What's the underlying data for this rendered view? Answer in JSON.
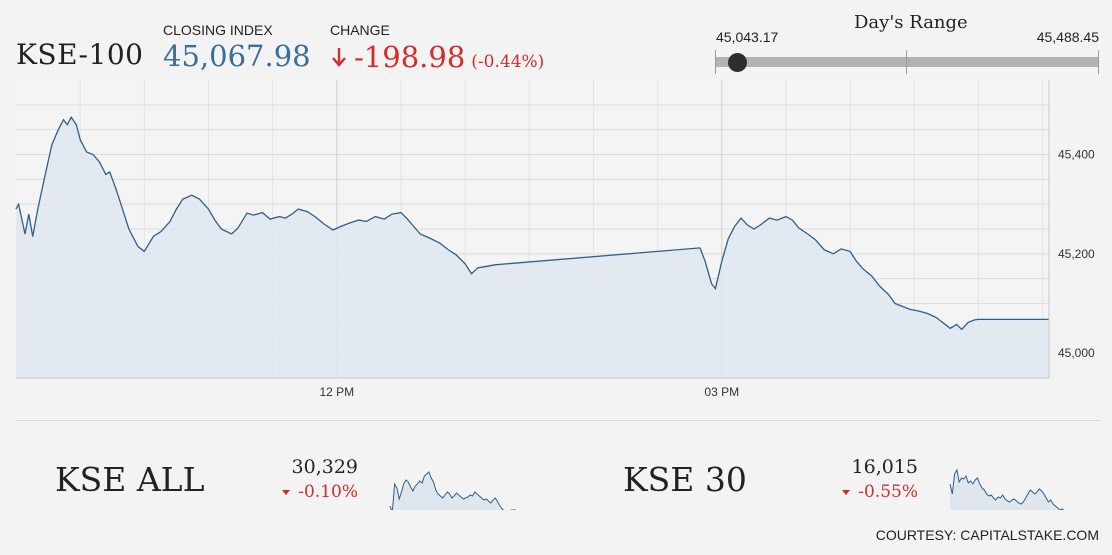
{
  "header": {
    "index_name": "KSE-100",
    "closing_label": "CLOSING INDEX",
    "closing_value": "45,067.98",
    "change_label": "CHANGE",
    "change_value": "-198.98",
    "change_pct": "(-0.44%)",
    "change_direction_icon": "arrow-down-icon"
  },
  "day_range": {
    "title": "Day's Range",
    "low": "45,043.17",
    "high": "45,488.45",
    "current_fraction": 0.056
  },
  "colors": {
    "accent_blue": "#3d6d9a",
    "negative_red": "#d52b2b",
    "line": "#2f5f8a",
    "fill": "#dfe6ee"
  },
  "chart_data": {
    "type": "area",
    "title": "",
    "xlabel": "",
    "ylabel": "",
    "x_tick_labels": [
      "12 PM",
      "03 PM"
    ],
    "y_tick_labels": [
      "45,000",
      "45,200",
      "45,400"
    ],
    "ylim": [
      44950,
      45550
    ],
    "grid": true,
    "series": [
      {
        "name": "",
        "points": [
          [
            9.5,
            45290
          ],
          [
            9.52,
            45300
          ],
          [
            9.57,
            45240
          ],
          [
            9.6,
            45280
          ],
          [
            9.63,
            45235
          ],
          [
            9.67,
            45290
          ],
          [
            9.72,
            45350
          ],
          [
            9.78,
            45420
          ],
          [
            9.83,
            45450
          ],
          [
            9.87,
            45470
          ],
          [
            9.9,
            45460
          ],
          [
            9.93,
            45475
          ],
          [
            9.97,
            45460
          ],
          [
            10.0,
            45430
          ],
          [
            10.05,
            45405
          ],
          [
            10.1,
            45400
          ],
          [
            10.15,
            45385
          ],
          [
            10.2,
            45360
          ],
          [
            10.23,
            45365
          ],
          [
            10.28,
            45330
          ],
          [
            10.33,
            45290
          ],
          [
            10.38,
            45250
          ],
          [
            10.45,
            45215
          ],
          [
            10.5,
            45205
          ],
          [
            10.57,
            45235
          ],
          [
            10.63,
            45245
          ],
          [
            10.7,
            45265
          ],
          [
            10.75,
            45290
          ],
          [
            10.8,
            45310
          ],
          [
            10.87,
            45318
          ],
          [
            10.93,
            45310
          ],
          [
            11.0,
            45290
          ],
          [
            11.05,
            45268
          ],
          [
            11.1,
            45250
          ],
          [
            11.18,
            45240
          ],
          [
            11.23,
            45252
          ],
          [
            11.3,
            45282
          ],
          [
            11.35,
            45278
          ],
          [
            11.42,
            45283
          ],
          [
            11.48,
            45270
          ],
          [
            11.55,
            45275
          ],
          [
            11.6,
            45272
          ],
          [
            11.65,
            45280
          ],
          [
            11.7,
            45290
          ],
          [
            11.77,
            45285
          ],
          [
            11.83,
            45275
          ],
          [
            11.9,
            45260
          ],
          [
            11.97,
            45248
          ],
          [
            12.03,
            45255
          ],
          [
            12.1,
            45262
          ],
          [
            12.17,
            45268
          ],
          [
            12.23,
            45265
          ],
          [
            12.3,
            45275
          ],
          [
            12.37,
            45270
          ],
          [
            12.43,
            45280
          ],
          [
            12.5,
            45283
          ],
          [
            12.55,
            45270
          ],
          [
            12.6,
            45255
          ],
          [
            12.65,
            45240
          ],
          [
            12.72,
            45232
          ],
          [
            12.8,
            45222
          ],
          [
            12.87,
            45208
          ],
          [
            12.93,
            45198
          ],
          [
            13.0,
            45180
          ],
          [
            13.05,
            45160
          ],
          [
            13.1,
            45172
          ],
          [
            13.17,
            45175
          ],
          [
            13.23,
            45178
          ],
          [
            14.83,
            45212
          ],
          [
            14.87,
            45185
          ],
          [
            14.92,
            45140
          ],
          [
            14.95,
            45130
          ],
          [
            15.0,
            45185
          ],
          [
            15.05,
            45230
          ],
          [
            15.1,
            45255
          ],
          [
            15.15,
            45272
          ],
          [
            15.2,
            45258
          ],
          [
            15.25,
            45250
          ],
          [
            15.3,
            45258
          ],
          [
            15.37,
            45272
          ],
          [
            15.43,
            45268
          ],
          [
            15.5,
            45275
          ],
          [
            15.55,
            45268
          ],
          [
            15.6,
            45252
          ],
          [
            15.67,
            45240
          ],
          [
            15.73,
            45228
          ],
          [
            15.8,
            45208
          ],
          [
            15.87,
            45200
          ],
          [
            15.93,
            45210
          ],
          [
            16.0,
            45205
          ],
          [
            16.05,
            45185
          ],
          [
            16.1,
            45170
          ],
          [
            16.17,
            45155
          ],
          [
            16.23,
            45135
          ],
          [
            16.3,
            45118
          ],
          [
            16.35,
            45100
          ],
          [
            16.4,
            45095
          ],
          [
            16.47,
            45088
          ],
          [
            16.53,
            45085
          ],
          [
            16.6,
            45080
          ],
          [
            16.67,
            45072
          ],
          [
            16.72,
            45062
          ],
          [
            16.78,
            45050
          ],
          [
            16.83,
            45058
          ],
          [
            16.87,
            45048
          ],
          [
            16.92,
            45062
          ],
          [
            16.97,
            45067
          ],
          [
            17.0,
            45068
          ],
          [
            17.05,
            45067.98
          ],
          [
            17.1,
            45067.98
          ],
          [
            17.55,
            45067.98
          ]
        ]
      }
    ],
    "x_ticks_hours": [
      12,
      15
    ],
    "x_range_hours": [
      9.5,
      17.55
    ]
  },
  "sub_indices": [
    {
      "name": "KSE ALL",
      "value": "30,329",
      "change": "-0.10%",
      "spark": [
        52,
        58,
        30,
        34,
        45,
        38,
        30,
        26,
        28,
        33,
        37,
        32,
        30,
        27,
        29,
        22,
        20,
        18,
        24,
        28,
        36,
        40,
        42,
        44,
        41,
        38,
        40,
        44,
        42,
        39,
        41,
        43,
        45,
        44,
        43,
        41,
        42,
        38,
        40,
        42,
        44,
        46,
        45,
        47,
        49,
        46,
        44,
        48,
        52,
        55,
        57,
        58,
        57,
        56,
        56,
        56
      ]
    },
    {
      "name": "KSE 30",
      "value": "16,015",
      "change": "-0.55%",
      "spark": [
        30,
        40,
        20,
        16,
        28,
        24,
        25,
        22,
        29,
        27,
        30,
        26,
        24,
        30,
        34,
        36,
        40,
        42,
        41,
        44,
        46,
        43,
        44,
        41,
        45,
        47,
        48,
        46,
        45,
        47,
        49,
        50,
        48,
        44,
        40,
        36,
        38,
        40,
        38,
        35,
        37,
        40,
        44,
        48,
        46,
        50,
        52,
        54,
        56,
        55,
        57,
        58,
        58,
        58,
        58,
        58
      ]
    }
  ],
  "footer": {
    "courtesy": "COURTESY: CAPITALSTAKE.COM"
  }
}
